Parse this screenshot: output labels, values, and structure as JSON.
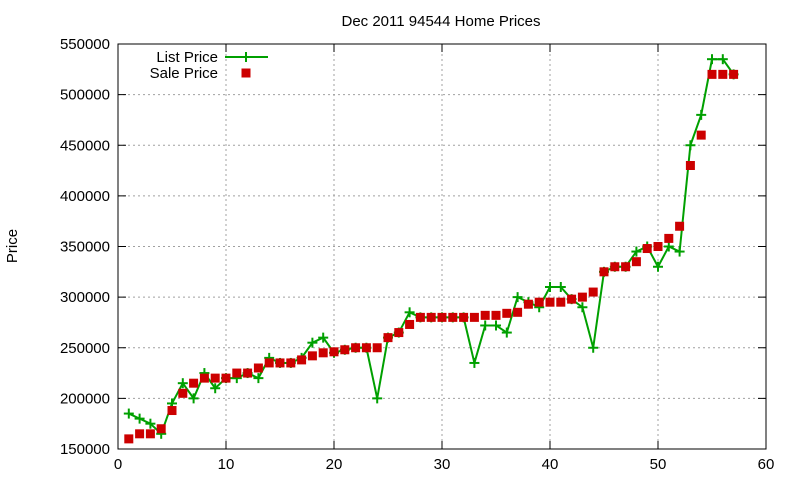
{
  "chart_data": {
    "type": "line",
    "title": "Dec 2011 94544 Home Prices",
    "xlabel": "",
    "ylabel": "Price",
    "xlim": [
      0,
      60
    ],
    "ylim": [
      150000,
      550000
    ],
    "xticks": [
      0,
      10,
      20,
      30,
      40,
      50,
      60
    ],
    "yticks": [
      150000,
      200000,
      250000,
      300000,
      350000,
      400000,
      450000,
      500000,
      550000
    ],
    "grid": true,
    "legend_position": "top-left",
    "x": [
      1,
      2,
      3,
      4,
      5,
      6,
      7,
      8,
      9,
      10,
      11,
      12,
      13,
      14,
      15,
      16,
      17,
      18,
      19,
      20,
      21,
      22,
      23,
      24,
      25,
      26,
      27,
      28,
      29,
      30,
      31,
      32,
      33,
      34,
      35,
      36,
      37,
      38,
      39,
      40,
      41,
      42,
      43,
      44,
      45,
      46,
      47,
      48,
      49,
      50,
      51,
      52,
      53,
      54,
      55,
      56,
      57
    ],
    "series": [
      {
        "name": "List Price",
        "style": "linespoints",
        "marker": "plus",
        "color": "#00a000",
        "values": [
          185000,
          180000,
          175000,
          165000,
          195000,
          215000,
          200000,
          225000,
          210000,
          220000,
          220000,
          225000,
          220000,
          240000,
          235000,
          235000,
          240000,
          255000,
          260000,
          245000,
          248000,
          250000,
          250000,
          200000,
          260000,
          265000,
          285000,
          280000,
          280000,
          280000,
          280000,
          280000,
          235000,
          272000,
          272000,
          265000,
          300000,
          295000,
          290000,
          310000,
          310000,
          298000,
          290000,
          250000,
          325000,
          330000,
          330000,
          345000,
          350000,
          330000,
          350000,
          345000,
          450000,
          480000,
          535000,
          535000,
          520000
        ]
      },
      {
        "name": "Sale Price",
        "style": "points",
        "marker": "square",
        "color": "#cc0000",
        "values": [
          160000,
          165000,
          165000,
          170000,
          188000,
          205000,
          215000,
          220000,
          220000,
          220000,
          225000,
          225000,
          230000,
          235000,
          235000,
          235000,
          238000,
          242000,
          245000,
          246000,
          248000,
          250000,
          250000,
          250000,
          260000,
          265000,
          273000,
          280000,
          280000,
          280000,
          280000,
          280000,
          280000,
          282000,
          282000,
          284000,
          285000,
          293000,
          295000,
          295000,
          295000,
          298000,
          300000,
          305000,
          325000,
          330000,
          330000,
          335000,
          348000,
          350000,
          358000,
          370000,
          430000,
          460000,
          520000,
          520000,
          520000
        ]
      }
    ]
  }
}
